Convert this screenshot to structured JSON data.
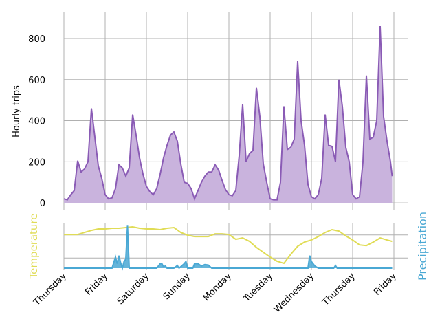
{
  "chart_data": [
    {
      "type": "area",
      "ylabel": "Hourly trips",
      "x": [
        0,
        2,
        4,
        6,
        8,
        10,
        12,
        14,
        16,
        18,
        20,
        22,
        24,
        26,
        28,
        30,
        32,
        34,
        36,
        38,
        40,
        42,
        44,
        46,
        48,
        50,
        52,
        54,
        56,
        58,
        60,
        62,
        64,
        66,
        68,
        70,
        72,
        74,
        76,
        78,
        80,
        82,
        84,
        86,
        88,
        90,
        92,
        94,
        96,
        98,
        100,
        102,
        104,
        106,
        108,
        110,
        112,
        114,
        116,
        118,
        120,
        122,
        124,
        126,
        128,
        130,
        132,
        134,
        136,
        138,
        140,
        142,
        144,
        146,
        148,
        150,
        152,
        154,
        156,
        158,
        160,
        162,
        164,
        166,
        168,
        170,
        172,
        174,
        176,
        178,
        180,
        182,
        184,
        186,
        188,
        190,
        191
      ],
      "values": [
        20,
        15,
        40,
        60,
        205,
        150,
        165,
        200,
        460,
        320,
        180,
        120,
        40,
        20,
        25,
        70,
        185,
        170,
        130,
        170,
        430,
        330,
        220,
        140,
        80,
        55,
        40,
        70,
        140,
        220,
        280,
        330,
        345,
        300,
        190,
        100,
        95,
        70,
        20,
        60,
        100,
        130,
        150,
        150,
        185,
        160,
        110,
        65,
        40,
        35,
        60,
        230,
        480,
        200,
        240,
        255,
        560,
        420,
        190,
        100,
        20,
        15,
        15,
        100,
        470,
        260,
        270,
        310,
        690,
        400,
        280,
        90,
        30,
        20,
        40,
        120,
        430,
        280,
        275,
        200,
        600,
        470,
        270,
        200,
        40,
        20,
        30,
        200,
        620,
        310,
        320,
        400,
        860,
        420,
        300,
        200,
        130
      ],
      "color": "#8a5bb5",
      "fill": "#c9b3dd",
      "xlim": [
        0,
        200
      ],
      "ylim": [
        -33,
        927
      ],
      "yticks": [
        0,
        200,
        400,
        600,
        800
      ],
      "grid": true
    },
    {
      "type": "line",
      "ylabel": "Temperature",
      "y2label": "Precipitation",
      "x": [
        0,
        4,
        8,
        12,
        16,
        20,
        24,
        28,
        32,
        36,
        40,
        44,
        48,
        52,
        56,
        60,
        64,
        68,
        72,
        76,
        80,
        84,
        88,
        92,
        96,
        100,
        104,
        108,
        112,
        116,
        120,
        124,
        128,
        132,
        136,
        140,
        144,
        148,
        152,
        156,
        160,
        164,
        168,
        172,
        176,
        180,
        184,
        188,
        191
      ],
      "series": [
        {
          "type": "line",
          "color": "#e0dc55",
          "values": [
            15.2,
            15.2,
            15.2,
            16.1,
            17.0,
            17.6,
            17.6,
            17.9,
            17.9,
            18.2,
            18.5,
            17.9,
            17.6,
            17.6,
            17.3,
            17.9,
            18.2,
            16.1,
            14.9,
            14.3,
            14.3,
            14.3,
            15.5,
            15.5,
            15.2,
            13.1,
            13.7,
            12.2,
            9.6,
            7.5,
            5.4,
            3.6,
            2.7,
            6.6,
            10.1,
            11.9,
            12.8,
            14.3,
            16.1,
            17.3,
            16.7,
            14.6,
            12.8,
            10.7,
            10.4,
            11.9,
            13.7,
            12.8,
            12.2
          ]
        },
        {
          "type": "area",
          "axis": "y2",
          "color": "#4aa8d4",
          "x": [
            0,
            28,
            30,
            31,
            32,
            33,
            34,
            35,
            36,
            37,
            38,
            54,
            56,
            57,
            58,
            59,
            60,
            64,
            66,
            67,
            70,
            71,
            72,
            75,
            76,
            78,
            80,
            82,
            84,
            86,
            142,
            143,
            144,
            146,
            148,
            157,
            158,
            159,
            191
          ],
          "values": [
            0,
            0,
            0.25,
            0.1,
            0.28,
            0.12,
            0,
            0.15,
            0.2,
            0.95,
            0,
            0,
            0.1,
            0.1,
            0.03,
            0.05,
            0,
            0,
            0.06,
            0,
            0.1,
            0.15,
            0,
            0,
            0.1,
            0.1,
            0.05,
            0.08,
            0.07,
            0,
            0,
            0.28,
            0.15,
            0.05,
            0,
            0,
            0.06,
            0,
            0
          ]
        }
      ],
      "xlim": [
        0,
        200
      ],
      "ylim": [
        0,
        20
      ],
      "yticks": [
        5,
        15
      ],
      "y2lim": [
        -0.03,
        1
      ],
      "grid": true,
      "xticks": [
        {
          "value": 0,
          "label": "Thursday"
        },
        {
          "value": 24,
          "label": "Friday"
        },
        {
          "value": 48,
          "label": "Saturday"
        },
        {
          "value": 72,
          "label": "Sunday"
        },
        {
          "value": 96,
          "label": "Monday"
        },
        {
          "value": 120,
          "label": "Tuesday"
        },
        {
          "value": 144,
          "label": "Wednesday"
        },
        {
          "value": 168,
          "label": "Thursday"
        },
        {
          "value": 192,
          "label": "Friday"
        }
      ]
    }
  ]
}
